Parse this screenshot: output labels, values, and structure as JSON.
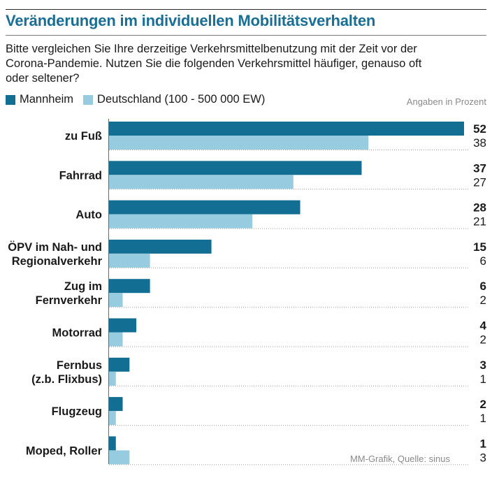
{
  "header": {
    "title": "Veränderungen im individuellen Mobilitätsverhalten",
    "subtitle": "Bitte vergleichen Sie Ihre derzeitige Verkehrsmittelbenutzung mit der Zeit vor der\nCorona-Pandemie. Nutzen Sie die folgenden Verkehrsmittel häufiger, genauso oft\noder seltener?"
  },
  "legend": {
    "items": [
      {
        "label": "Mannheim",
        "color": "#126e92"
      },
      {
        "label": "Deutschland (100 - 500 000 EW)",
        "color": "#96cbe0"
      }
    ]
  },
  "unit_note": "Angaben in Prozent",
  "source": "MM-Grafik, Quelle: sinus",
  "chart_data": {
    "type": "bar",
    "orientation": "horizontal",
    "categories": [
      "zu Fuß",
      "Fahrrad",
      "Auto",
      "ÖPV im Nah- und\nRegionalverkehr",
      "Zug im\nFernverkehr",
      "Motorrad",
      "Fernbus\n(z.b. Flixbus)",
      "Flugzeug",
      "Moped, Roller"
    ],
    "series": [
      {
        "name": "Mannheim",
        "color": "#126e92",
        "values": [
          52,
          37,
          28,
          15,
          6,
          4,
          3,
          2,
          1
        ]
      },
      {
        "name": "Deutschland (100 - 500 000 EW)",
        "color": "#96cbe0",
        "values": [
          38,
          27,
          21,
          6,
          2,
          2,
          1,
          1,
          3
        ]
      }
    ],
    "xlim": [
      0,
      52
    ],
    "grid": false
  }
}
